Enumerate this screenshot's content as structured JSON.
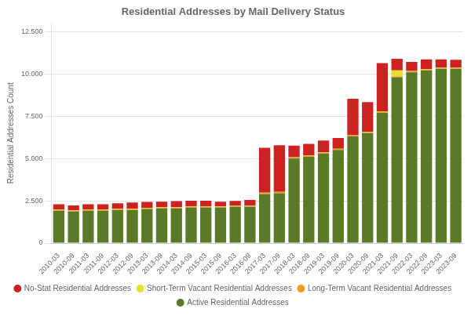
{
  "chart_data": {
    "type": "bar",
    "stacked": true,
    "title": "Residential Addresses by Mail Delivery Status",
    "ylabel": "Residential Addresses Count",
    "categories": [
      "2010-03",
      "2010-09",
      "2011-03",
      "2011-09",
      "2012-03",
      "2012-09",
      "2013-03",
      "2013-09",
      "2014-03",
      "2014-09",
      "2015-03",
      "2015-09",
      "2016-03",
      "2016-09",
      "2017-03",
      "2017-09",
      "2018-03",
      "2018-09",
      "2019-03",
      "2019-09",
      "2020-03",
      "2020-09",
      "2021-03",
      "2021-09",
      "2022-03",
      "2022-09",
      "2023-03",
      "2023-09"
    ],
    "series": [
      {
        "name": "Active Residential Addresses",
        "color": "#5a7a28",
        "values": [
          1900,
          1870,
          1900,
          1900,
          1950,
          1950,
          2000,
          2050,
          2050,
          2100,
          2100,
          2100,
          2150,
          2150,
          2900,
          2950,
          5000,
          5100,
          5300,
          5500,
          6300,
          6500,
          7700,
          9800,
          10100,
          10200,
          10300,
          10300
        ]
      },
      {
        "name": "Long-Term Vacant Residential Addresses",
        "color": "#e8a020",
        "values": [
          60,
          60,
          60,
          60,
          60,
          60,
          60,
          60,
          60,
          60,
          60,
          60,
          60,
          60,
          60,
          60,
          60,
          60,
          60,
          60,
          60,
          60,
          60,
          60,
          60,
          60,
          60,
          60
        ]
      },
      {
        "name": "Short-Term Vacant Residential Addresses",
        "color": "#e8e030",
        "values": [
          20,
          20,
          20,
          20,
          20,
          20,
          20,
          20,
          20,
          20,
          20,
          20,
          20,
          20,
          20,
          20,
          20,
          20,
          20,
          20,
          20,
          20,
          30,
          350,
          20,
          20,
          20,
          20
        ]
      },
      {
        "name": "No-Stat Residential Addresses",
        "color": "#cc2222",
        "values": [
          320,
          280,
          320,
          320,
          320,
          370,
          350,
          320,
          350,
          320,
          320,
          270,
          260,
          320,
          2650,
          2750,
          680,
          680,
          680,
          630,
          2150,
          1750,
          2850,
          680,
          530,
          580,
          480,
          460
        ]
      }
    ],
    "ylim": [
      0,
      13000
    ],
    "yticks": [
      0,
      {
        "value": 2500,
        "label": "2.500"
      },
      {
        "value": 5000,
        "label": "5.000"
      },
      {
        "value": 7500,
        "label": "7.500"
      },
      {
        "value": 10000,
        "label": "10.000"
      },
      {
        "value": 12500,
        "label": "12.500"
      }
    ],
    "grid": true,
    "legend": "bottom"
  }
}
